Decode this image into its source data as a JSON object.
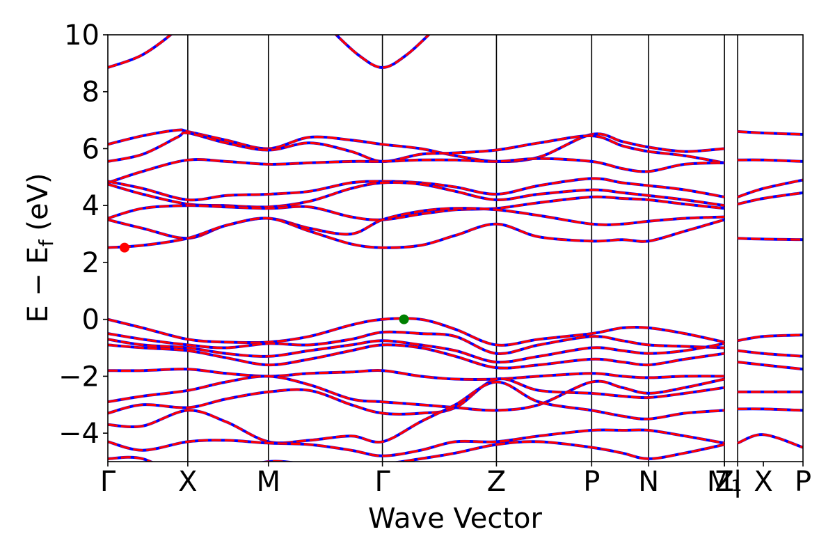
{
  "chart_data": {
    "type": "line",
    "title": "",
    "xlabel": "Wave Vector",
    "ylabel_parts": {
      "main": "E − E",
      "sub": "f",
      "unit": " (eV)"
    },
    "ylim": [
      -5,
      10
    ],
    "yticks": [
      -4,
      -2,
      0,
      2,
      4,
      6,
      8,
      10
    ],
    "ytick_labels": [
      "−4",
      "−2",
      "0",
      "2",
      "4",
      "6",
      "8",
      "10"
    ],
    "xlim": [
      0,
      1
    ],
    "kpoints": [
      {
        "label": "Γ",
        "x": 0.0
      },
      {
        "label": "X",
        "x": 0.115
      },
      {
        "label": "M",
        "x": 0.231
      },
      {
        "label": "Γ",
        "x": 0.395
      },
      {
        "label": "Z",
        "x": 0.559
      },
      {
        "label": "P",
        "x": 0.696
      },
      {
        "label": "N",
        "x": 0.778
      },
      {
        "label": "Z",
        "x": 0.887
      },
      {
        "label": "M₁",
        "x": 0.887
      },
      {
        "label": "|",
        "x": 0.906
      },
      {
        "label": "X",
        "x": 0.943
      },
      {
        "label": "P",
        "x": 1.0
      }
    ],
    "vlines": [
      0.115,
      0.231,
      0.395,
      0.559,
      0.696,
      0.778,
      0.887,
      0.906
    ],
    "grid": false,
    "legend": "none",
    "colors": {
      "band": "#ff0000",
      "band_overlay": "#0000ff",
      "vbm": "#008000",
      "cbm": "#ff0000",
      "axes": "#000000"
    },
    "markers": [
      {
        "name": "cbm",
        "x": 0.024,
        "y": 2.52,
        "color": "#ff0000"
      },
      {
        "name": "vbm",
        "x": 0.426,
        "y": 0.0,
        "color": "#008000"
      }
    ],
    "bands": [
      {
        "x": [
          0,
          0.05,
          0.1,
          0.115
        ],
        "y": [
          8.85,
          9.3,
          10.2,
          10.7
        ]
      },
      {
        "x": [
          0.32,
          0.36,
          0.395,
          0.43,
          0.47
        ],
        "y": [
          10.2,
          9.3,
          8.85,
          9.3,
          10.2
        ]
      },
      {
        "x": [
          0,
          0.05,
          0.1,
          0.115,
          0.17,
          0.231,
          0.29,
          0.35,
          0.395,
          0.45,
          0.5,
          0.559,
          0.62,
          0.696,
          0.74,
          0.778,
          0.83,
          0.887
        ],
        "y": [
          6.15,
          6.45,
          6.65,
          6.6,
          6.3,
          6.0,
          6.4,
          6.3,
          6.15,
          6.0,
          5.75,
          5.55,
          5.7,
          6.5,
          6.25,
          6.05,
          5.9,
          6.0
        ]
      },
      {
        "x": [
          0,
          0.05,
          0.1,
          0.115,
          0.17,
          0.231,
          0.29,
          0.35,
          0.395,
          0.45,
          0.5,
          0.559,
          0.62,
          0.696,
          0.74,
          0.778,
          0.83,
          0.887
        ],
        "y": [
          5.55,
          5.8,
          6.4,
          6.55,
          6.2,
          5.95,
          6.2,
          5.9,
          5.55,
          5.8,
          5.85,
          5.95,
          6.2,
          6.45,
          6.1,
          5.9,
          5.75,
          5.5
        ]
      },
      {
        "x": [
          0,
          0.05,
          0.115,
          0.17,
          0.231,
          0.29,
          0.35,
          0.395,
          0.45,
          0.5,
          0.559,
          0.62,
          0.696,
          0.74,
          0.778,
          0.83,
          0.887
        ],
        "y": [
          4.8,
          5.2,
          5.6,
          5.55,
          5.45,
          5.5,
          5.55,
          5.55,
          5.6,
          5.6,
          5.55,
          5.65,
          5.55,
          5.3,
          5.2,
          5.45,
          5.5
        ]
      },
      {
        "x": [
          0,
          0.05,
          0.115,
          0.17,
          0.231,
          0.29,
          0.35,
          0.395,
          0.45,
          0.5,
          0.559,
          0.62,
          0.696,
          0.74,
          0.778,
          0.83,
          0.887
        ],
        "y": [
          4.85,
          4.6,
          4.2,
          4.35,
          4.4,
          4.5,
          4.8,
          4.85,
          4.8,
          4.65,
          4.4,
          4.7,
          4.95,
          4.8,
          4.7,
          4.55,
          4.3
        ]
      },
      {
        "x": [
          0,
          0.05,
          0.115,
          0.17,
          0.231,
          0.29,
          0.35,
          0.395,
          0.45,
          0.5,
          0.559,
          0.62,
          0.696,
          0.74,
          0.778,
          0.83,
          0.887
        ],
        "y": [
          4.75,
          4.4,
          4.05,
          4.0,
          3.95,
          4.15,
          4.6,
          4.8,
          4.75,
          4.5,
          4.2,
          4.4,
          4.55,
          4.45,
          4.35,
          4.2,
          4.0
        ]
      },
      {
        "x": [
          0,
          0.05,
          0.115,
          0.17,
          0.231,
          0.29,
          0.35,
          0.395,
          0.45,
          0.5,
          0.559,
          0.62,
          0.696,
          0.74,
          0.778,
          0.83,
          0.887
        ],
        "y": [
          3.55,
          3.9,
          4.0,
          3.95,
          3.9,
          3.95,
          3.6,
          3.5,
          3.7,
          3.85,
          3.9,
          4.1,
          4.3,
          4.25,
          4.2,
          4.05,
          3.9
        ]
      },
      {
        "x": [
          0,
          0.05,
          0.115,
          0.17,
          0.231,
          0.29,
          0.35,
          0.395,
          0.45,
          0.5,
          0.559,
          0.62,
          0.696,
          0.74,
          0.778,
          0.83,
          0.887
        ],
        "y": [
          3.5,
          3.2,
          2.85,
          3.3,
          3.55,
          3.2,
          3.0,
          3.5,
          3.8,
          3.9,
          3.85,
          3.65,
          3.35,
          3.35,
          3.45,
          3.55,
          3.6
        ]
      },
      {
        "x": [
          0,
          0.05,
          0.115,
          0.17,
          0.231,
          0.29,
          0.35,
          0.395,
          0.45,
          0.5,
          0.559,
          0.62,
          0.696,
          0.74,
          0.778,
          0.83,
          0.887
        ],
        "y": [
          2.52,
          2.6,
          2.85,
          3.3,
          3.55,
          3.1,
          2.65,
          2.52,
          2.6,
          2.95,
          3.35,
          2.9,
          2.75,
          2.8,
          2.75,
          3.1,
          3.5
        ]
      },
      {
        "x": [
          0.906,
          0.943,
          1.0
        ],
        "y": [
          6.6,
          6.55,
          6.5
        ]
      },
      {
        "x": [
          0.906,
          0.943,
          1.0
        ],
        "y": [
          5.6,
          5.6,
          5.55
        ]
      },
      {
        "x": [
          0.906,
          0.943,
          1.0
        ],
        "y": [
          4.3,
          4.6,
          4.9
        ]
      },
      {
        "x": [
          0.906,
          0.943,
          1.0
        ],
        "y": [
          4.05,
          4.25,
          4.45
        ]
      },
      {
        "x": [
          0.906,
          0.943,
          1.0
        ],
        "y": [
          2.85,
          2.82,
          2.8
        ]
      },
      {
        "x": [
          0,
          0.05,
          0.115,
          0.17,
          0.231,
          0.29,
          0.35,
          0.395,
          0.45,
          0.5,
          0.559,
          0.62,
          0.696,
          0.74,
          0.778,
          0.83,
          0.887
        ],
        "y": [
          0.0,
          -0.3,
          -0.7,
          -0.8,
          -0.8,
          -0.6,
          -0.2,
          0.0,
          0.0,
          -0.35,
          -0.9,
          -0.7,
          -0.5,
          -0.3,
          -0.3,
          -0.5,
          -0.8
        ]
      },
      {
        "x": [
          0,
          0.05,
          0.115,
          0.17,
          0.231,
          0.29,
          0.35,
          0.395,
          0.45,
          0.5,
          0.559,
          0.62,
          0.696,
          0.74,
          0.778,
          0.83,
          0.887
        ],
        "y": [
          -0.5,
          -0.7,
          -0.9,
          -1.0,
          -0.85,
          -0.9,
          -0.7,
          -0.45,
          -0.5,
          -0.6,
          -1.2,
          -0.9,
          -0.6,
          -0.75,
          -0.9,
          -0.95,
          -1.0
        ]
      },
      {
        "x": [
          0,
          0.05,
          0.115,
          0.17,
          0.231,
          0.29,
          0.35,
          0.395,
          0.45,
          0.5,
          0.559,
          0.62,
          0.696,
          0.74,
          0.778,
          0.83,
          0.887
        ],
        "y": [
          -0.7,
          -0.9,
          -1.0,
          -1.2,
          -1.3,
          -1.1,
          -0.9,
          -0.75,
          -0.9,
          -1.1,
          -1.5,
          -1.3,
          -1.0,
          -1.1,
          -1.2,
          -1.1,
          -0.85
        ]
      },
      {
        "x": [
          0,
          0.05,
          0.115,
          0.17,
          0.231,
          0.29,
          0.35,
          0.395,
          0.45,
          0.5,
          0.559,
          0.62,
          0.696,
          0.74,
          0.778,
          0.83,
          0.887
        ],
        "y": [
          -0.9,
          -1.0,
          -1.1,
          -1.35,
          -1.6,
          -1.4,
          -1.1,
          -0.9,
          -1.0,
          -1.3,
          -1.7,
          -1.6,
          -1.4,
          -1.5,
          -1.6,
          -1.4,
          -1.2
        ]
      },
      {
        "x": [
          0,
          0.05,
          0.115,
          0.17,
          0.231,
          0.29,
          0.35,
          0.395,
          0.45,
          0.5,
          0.559,
          0.62,
          0.696,
          0.74,
          0.778,
          0.83,
          0.887
        ],
        "y": [
          -1.8,
          -1.8,
          -1.75,
          -1.9,
          -2.0,
          -1.9,
          -1.85,
          -1.8,
          -2.0,
          -2.1,
          -2.1,
          -2.0,
          -1.9,
          -2.0,
          -2.05,
          -2.0,
          -2.0
        ]
      },
      {
        "x": [
          0,
          0.05,
          0.115,
          0.17,
          0.231,
          0.29,
          0.35,
          0.395,
          0.45,
          0.5,
          0.559,
          0.62,
          0.696,
          0.74,
          0.778,
          0.83,
          0.887
        ],
        "y": [
          -2.9,
          -2.7,
          -2.5,
          -2.2,
          -2.0,
          -2.3,
          -2.8,
          -2.9,
          -3.0,
          -3.1,
          -3.2,
          -3.0,
          -2.2,
          -2.4,
          -2.6,
          -2.4,
          -2.1
        ]
      },
      {
        "x": [
          0,
          0.05,
          0.115,
          0.17,
          0.231,
          0.29,
          0.35,
          0.395,
          0.45,
          0.5,
          0.559,
          0.62,
          0.696,
          0.74,
          0.778,
          0.83,
          0.887
        ],
        "y": [
          -3.3,
          -3.0,
          -3.1,
          -2.8,
          -2.55,
          -2.5,
          -3.0,
          -3.3,
          -3.3,
          -3.1,
          -2.1,
          -2.5,
          -2.6,
          -2.7,
          -2.75,
          -2.6,
          -2.4
        ]
      },
      {
        "x": [
          0,
          0.05,
          0.115,
          0.17,
          0.231,
          0.29,
          0.35,
          0.395,
          0.45,
          0.5,
          0.559,
          0.62,
          0.696,
          0.74,
          0.778,
          0.83,
          0.887
        ],
        "y": [
          -3.7,
          -3.75,
          -3.2,
          -3.6,
          -4.3,
          -4.25,
          -4.1,
          -4.3,
          -3.6,
          -3.0,
          -2.2,
          -2.9,
          -3.2,
          -3.4,
          -3.5,
          -3.3,
          -3.2
        ]
      },
      {
        "x": [
          0,
          0.05,
          0.115,
          0.17,
          0.231,
          0.29,
          0.35,
          0.395,
          0.45,
          0.5,
          0.559,
          0.62,
          0.696,
          0.74,
          0.778,
          0.83,
          0.887
        ],
        "y": [
          -4.3,
          -4.6,
          -4.3,
          -4.25,
          -4.35,
          -4.4,
          -4.6,
          -4.8,
          -4.6,
          -4.3,
          -4.3,
          -4.1,
          -3.9,
          -3.9,
          -3.9,
          -4.1,
          -4.35
        ]
      },
      {
        "x": [
          0,
          0.05,
          0.115,
          0.17,
          0.231,
          0.29,
          0.35,
          0.395,
          0.45,
          0.5,
          0.559,
          0.62,
          0.696,
          0.74,
          0.778,
          0.83,
          0.887
        ],
        "y": [
          -4.9,
          -4.9,
          -5.6,
          -5.4,
          -5.0,
          -5.1,
          -5.2,
          -5.1,
          -4.9,
          -4.7,
          -4.4,
          -4.3,
          -4.5,
          -4.7,
          -4.9,
          -4.7,
          -4.4
        ]
      },
      {
        "x": [
          0.906,
          0.943,
          1.0
        ],
        "y": [
          -0.75,
          -0.6,
          -0.55
        ]
      },
      {
        "x": [
          0.906,
          0.943,
          1.0
        ],
        "y": [
          -1.1,
          -1.2,
          -1.3
        ]
      },
      {
        "x": [
          0.906,
          0.943,
          1.0
        ],
        "y": [
          -1.5,
          -1.6,
          -1.75
        ]
      },
      {
        "x": [
          0.906,
          0.943,
          1.0
        ],
        "y": [
          -2.55,
          -2.55,
          -2.55
        ]
      },
      {
        "x": [
          0.906,
          0.943,
          1.0
        ],
        "y": [
          -3.15,
          -3.15,
          -3.2
        ]
      },
      {
        "x": [
          0.906,
          0.943,
          1.0
        ],
        "y": [
          -4.35,
          -4.05,
          -4.5
        ]
      }
    ]
  }
}
